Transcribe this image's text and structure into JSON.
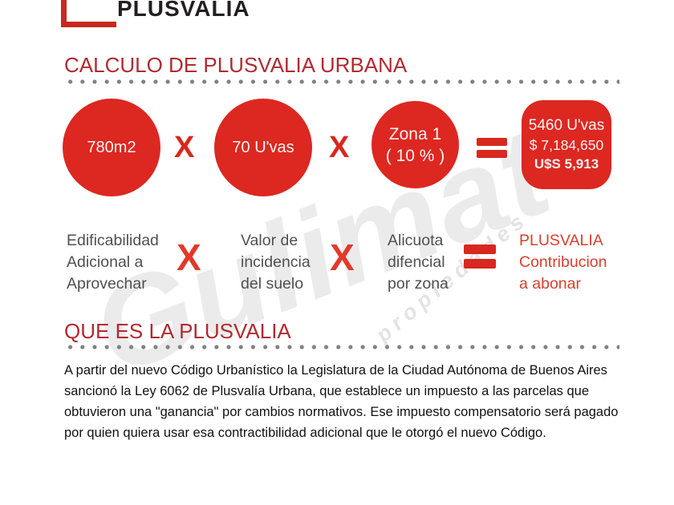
{
  "logo": {
    "text": "PLUSVALIA"
  },
  "colors": {
    "brand_red": "#dd2721",
    "heading_red": "#b12a31",
    "operator_red": "#e23a2b",
    "logo_red": "#c8291e",
    "label_gray": "#4f5052",
    "result_label_red": "#d8402f",
    "dot_gray": "#808080",
    "body_text": "#111111"
  },
  "calc_section": {
    "title": "CALCULO DE PLUSVALIA URBANA",
    "multiply_symbol": "X",
    "circles": [
      {
        "lines": [
          "780m2"
        ]
      },
      {
        "lines": [
          "70 U'vas"
        ]
      },
      {
        "lines": [
          "Zona 1",
          "( 10 % )"
        ]
      }
    ],
    "result_box": {
      "lines": [
        "5460 U'vas",
        "$ 7,184,650",
        "U$S 5,913"
      ]
    },
    "labels": [
      {
        "lines": [
          "Edificabilidad",
          "Adicional a",
          "Aprovechar"
        ]
      },
      {
        "lines": [
          "Valor de",
          "incidencia",
          "del suelo"
        ]
      },
      {
        "lines": [
          "Alicuota",
          "difencial",
          "por zona"
        ]
      },
      {
        "lines": [
          "PLUSVALIA",
          "Contribucion",
          "a abonar"
        ]
      }
    ]
  },
  "info_section": {
    "title": "QUE ES LA PLUSVALIA",
    "paragraph": "A partir del nuevo Código Urbanístico la Legislatura de la Ciudad Autónoma de Buenos Aires sancionó la Ley 6062 de Plusvalía Urbana, que establece un impuesto a las parcelas que obtuvieron una \"ganancia\" por cambios normativos. Ese impuesto compensatorio será pagado por quien quiera usar esa contractibilidad adicional que le otorgó el nuevo Código."
  },
  "watermark": {
    "text": "Gulimat",
    "subtext": "propiedades"
  }
}
